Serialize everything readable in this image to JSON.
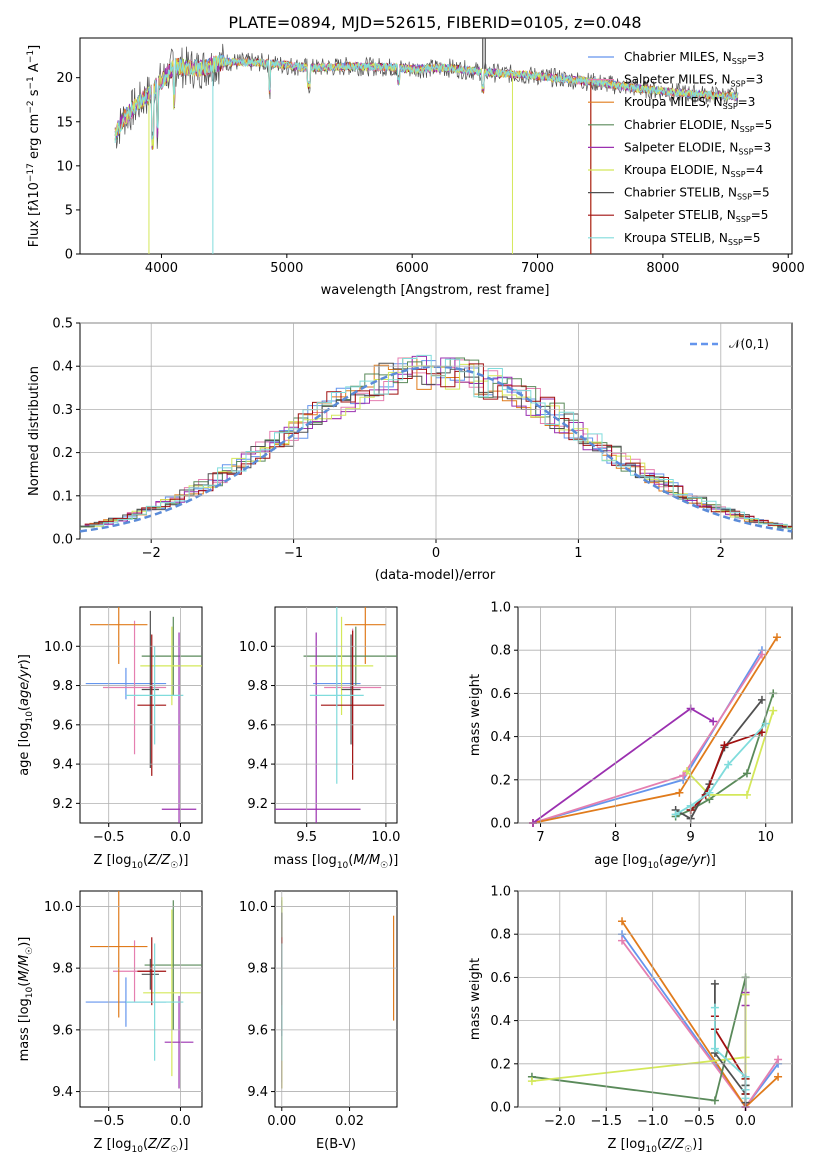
{
  "models": [
    {
      "name": "Chabrier MILES",
      "nssp": "3",
      "color": "#6495ed"
    },
    {
      "name": "Salpeter MILES",
      "nssp": "3",
      "color": "#e57fb0"
    },
    {
      "name": "Kroupa MILES",
      "nssp": "3",
      "color": "#e07b1c"
    },
    {
      "name": "Chabrier ELODIE",
      "nssp": "5",
      "color": "#5a8a5a"
    },
    {
      "name": "Salpeter ELODIE",
      "nssp": "3",
      "color": "#9b30b0"
    },
    {
      "name": "Kroupa ELODIE",
      "nssp": "4",
      "color": "#d4e85a"
    },
    {
      "name": "Chabrier STELIB",
      "nssp": "5",
      "color": "#505050"
    },
    {
      "name": "Salpeter STELIB",
      "nssp": "5",
      "color": "#a01010"
    },
    {
      "name": "Kroupa STELIB",
      "nssp": "5",
      "color": "#80dcdc"
    }
  ],
  "chart_data": [
    {
      "id": "spectrum",
      "type": "line",
      "title": "PLATE=0894, MJD=52615, FIBERID=0105, z=0.048",
      "xlabel": "wavelength [Angstrom, rest frame]",
      "ylabel": "Flux [f_λ 10^-17 erg cm^-2 s^-1 A^-1]",
      "xlim": [
        3350,
        9030
      ],
      "ylim": [
        0,
        24.5
      ],
      "xticks": [
        4000,
        5000,
        6000,
        7000,
        8000,
        9000
      ],
      "yticks": [
        0,
        5,
        10,
        15,
        20
      ],
      "x": [
        3630,
        3700,
        3800,
        3900,
        4000,
        4100,
        4300,
        4500,
        4800,
        5000,
        5200,
        5500,
        5800,
        6000,
        6300,
        6600,
        6900,
        7200,
        7500,
        7800,
        8100,
        8400,
        8600
      ],
      "y": [
        13.5,
        15.5,
        16.8,
        18.2,
        19.6,
        21.3,
        21.0,
        21.8,
        21.7,
        21.4,
        21.1,
        21.3,
        21.2,
        21.0,
        21.1,
        20.6,
        20.3,
        19.9,
        19.4,
        18.8,
        18.3,
        18.0,
        17.9
      ],
      "grid": false,
      "legend": "top-right"
    },
    {
      "id": "residuals",
      "type": "line",
      "xlabel": "(data-model)/error",
      "ylabel": "Normed distribution",
      "xlim": [
        -2.5,
        2.5
      ],
      "ylim": [
        0,
        0.5
      ],
      "xticks": [
        -2,
        -1,
        0,
        1,
        2
      ],
      "yticks": [
        0.0,
        0.1,
        0.2,
        0.3,
        0.4,
        0.5
      ],
      "reference_curve": "𝒩(0,1)",
      "grid": true,
      "legend": "top-right"
    },
    {
      "id": "age-vs-Z",
      "type": "scatter",
      "xlabel": "Z [log10(Z/Z☉)]",
      "ylabel": "age [log10(age/yr)]",
      "xlim": [
        -0.7,
        0.15
      ],
      "ylim": [
        9.1,
        10.2
      ],
      "xticks": [
        -0.5,
        0.0
      ],
      "yticks": [
        9.2,
        9.4,
        9.6,
        9.8,
        10.0
      ],
      "points": [
        {
          "x": -0.38,
          "y": 9.81,
          "xerr": 0.28,
          "yerr": 0.08
        },
        {
          "x": -0.32,
          "y": 9.79,
          "xerr": 0.22,
          "yerr": 0.34
        },
        {
          "x": -0.43,
          "y": 10.11,
          "xerr": 0.2,
          "yerr": 0.2
        },
        {
          "x": -0.05,
          "y": 9.95,
          "xerr": 0.22,
          "yerr": 0.2
        },
        {
          "x": -0.01,
          "y": 9.17,
          "xerr": 0.12,
          "yerr": 0.9
        },
        {
          "x": -0.06,
          "y": 9.9,
          "xerr": 0.22,
          "yerr": 0.2
        },
        {
          "x": -0.21,
          "y": 9.78,
          "xerr": 0.06,
          "yerr": 0.4
        },
        {
          "x": -0.2,
          "y": 9.7,
          "xerr": 0.1,
          "yerr": 0.36
        },
        {
          "x": -0.18,
          "y": 9.75,
          "xerr": 0.2,
          "yerr": 0.25
        }
      ],
      "grid": true
    },
    {
      "id": "age-vs-mass",
      "type": "scatter",
      "xlabel": "mass [log10(M/M☉)]",
      "ylabel": "",
      "xlim": [
        9.3,
        10.07
      ],
      "ylim": [
        9.1,
        10.2
      ],
      "xticks": [
        9.5,
        10.0
      ],
      "yticks": [
        9.2,
        9.4,
        9.6,
        9.8,
        10.0
      ],
      "points": [
        {
          "x": 9.69,
          "y": 9.81,
          "xerr": 0.15,
          "yerr": 0.12
        },
        {
          "x": 9.79,
          "y": 9.79,
          "xerr": 0.18,
          "yerr": 0.3
        },
        {
          "x": 9.87,
          "y": 10.11,
          "xerr": 0.13,
          "yerr": 0.2
        },
        {
          "x": 9.81,
          "y": 9.95,
          "xerr": 0.33,
          "yerr": 0.15
        },
        {
          "x": 9.56,
          "y": 9.17,
          "xerr": 0.28,
          "yerr": 0.9
        },
        {
          "x": 9.72,
          "y": 9.9,
          "xerr": 0.2,
          "yerr": 0.25
        },
        {
          "x": 9.78,
          "y": 9.78,
          "xerr": 0.06,
          "yerr": 0.28
        },
        {
          "x": 9.79,
          "y": 9.7,
          "xerr": 0.2,
          "yerr": 0.38
        },
        {
          "x": 9.69,
          "y": 9.75,
          "xerr": 0.17,
          "yerr": 0.45
        }
      ],
      "grid": true
    },
    {
      "id": "massweight-vs-age",
      "type": "line",
      "xlabel": "age [log10(age/yr)]",
      "ylabel": "mass weight",
      "xlim": [
        6.7,
        10.35
      ],
      "ylim": [
        0,
        1.0
      ],
      "xticks": [
        7,
        8,
        9,
        10
      ],
      "yticks": [
        0.0,
        0.2,
        0.4,
        0.6,
        0.8,
        1.0
      ],
      "series": [
        {
          "x": [
            6.9,
            8.9,
            9.95
          ],
          "y": [
            0.0,
            0.2,
            0.8
          ]
        },
        {
          "x": [
            6.9,
            8.9,
            9.95
          ],
          "y": [
            0.0,
            0.22,
            0.78
          ]
        },
        {
          "x": [
            6.9,
            8.85,
            10.15
          ],
          "y": [
            0.0,
            0.14,
            0.86
          ]
        },
        {
          "x": [
            8.8,
            9.0,
            9.25,
            9.75,
            10.1
          ],
          "y": [
            0.03,
            0.06,
            0.11,
            0.23,
            0.6
          ]
        },
        {
          "x": [
            6.9,
            9.0,
            9.3
          ],
          "y": [
            0.0,
            0.53,
            0.47
          ]
        },
        {
          "x": [
            8.95,
            9.25,
            9.75,
            10.1
          ],
          "y": [
            0.24,
            0.13,
            0.13,
            0.52
          ]
        },
        {
          "x": [
            8.8,
            9.0,
            9.25,
            9.45,
            9.95
          ],
          "y": [
            0.06,
            0.02,
            0.18,
            0.35,
            0.57
          ]
        },
        {
          "x": [
            9.0,
            9.2,
            9.45,
            9.95
          ],
          "y": [
            0.06,
            0.13,
            0.36,
            0.42
          ]
        },
        {
          "x": [
            8.8,
            9.0,
            9.25,
            9.5,
            10.0
          ],
          "y": [
            0.04,
            0.08,
            0.14,
            0.27,
            0.46
          ]
        }
      ],
      "grid": true
    },
    {
      "id": "mass-vs-Z",
      "type": "scatter",
      "xlabel": "Z [log10(Z/Z☉)]",
      "ylabel": "mass [log10(M/M☉)]",
      "xlim": [
        -0.7,
        0.15
      ],
      "ylim": [
        9.35,
        10.05
      ],
      "xticks": [
        -0.5,
        0.0
      ],
      "yticks": [
        9.4,
        9.6,
        9.8,
        10.0
      ],
      "points": [
        {
          "x": -0.38,
          "y": 9.69,
          "xerr": 0.28,
          "yerr": 0.08
        },
        {
          "x": -0.32,
          "y": 9.79,
          "xerr": 0.15,
          "yerr": 0.1
        },
        {
          "x": -0.43,
          "y": 9.87,
          "xerr": 0.2,
          "yerr": 0.23
        },
        {
          "x": -0.05,
          "y": 9.81,
          "xerr": 0.2,
          "yerr": 0.21
        },
        {
          "x": -0.01,
          "y": 9.56,
          "xerr": 0.1,
          "yerr": 0.15
        },
        {
          "x": -0.06,
          "y": 9.72,
          "xerr": 0.2,
          "yerr": 0.27
        },
        {
          "x": -0.21,
          "y": 9.78,
          "xerr": 0.06,
          "yerr": 0.05
        },
        {
          "x": -0.2,
          "y": 9.79,
          "xerr": 0.1,
          "yerr": 0.11
        },
        {
          "x": -0.18,
          "y": 9.69,
          "xerr": 0.2,
          "yerr": 0.19
        }
      ],
      "grid": true
    },
    {
      "id": "mass-vs-EBV",
      "type": "scatter",
      "xlabel": "E(B-V)",
      "ylabel": "",
      "xlim": [
        -0.002,
        0.034
      ],
      "ylim": [
        9.35,
        10.05
      ],
      "xticks": [
        0.0,
        0.02
      ],
      "yticks": [
        9.4,
        9.6,
        9.8,
        10.0
      ],
      "points": [
        {
          "x": 0.0,
          "y": 9.69,
          "xerr": 0,
          "yerr": 0.26
        },
        {
          "x": 0.0,
          "y": 9.79,
          "xerr": 0,
          "yerr": 0.14
        },
        {
          "x": 0.033,
          "y": 9.8,
          "xerr": 0,
          "yerr": 0.17
        },
        {
          "x": 0.0,
          "y": 9.81,
          "xerr": 0,
          "yerr": 0.21
        },
        {
          "x": 0.0,
          "y": 9.56,
          "xerr": 0,
          "yerr": 0.15
        },
        {
          "x": 0.0,
          "y": 9.72,
          "xerr": 0,
          "yerr": 0.31
        },
        {
          "x": 0.0,
          "y": 9.78,
          "xerr": 0,
          "yerr": 0.2
        },
        {
          "x": 0.0,
          "y": 9.79,
          "xerr": 0,
          "yerr": 0.11
        },
        {
          "x": 0.0,
          "y": 9.69,
          "xerr": 0,
          "yerr": 0.19
        }
      ],
      "grid": true
    },
    {
      "id": "massweight-vs-Z",
      "type": "line",
      "xlabel": "Z [log10(Z/Z☉)]",
      "ylabel": "mass weight",
      "xlim": [
        -2.45,
        0.5
      ],
      "ylim": [
        0,
        1.0
      ],
      "xticks": [
        -2.0,
        -1.5,
        -1.0,
        -0.5,
        0.0
      ],
      "yticks": [
        0.0,
        0.2,
        0.4,
        0.6,
        0.8,
        1.0
      ],
      "series": [
        {
          "x": [
            -1.33,
            0.0,
            0.35
          ],
          "y": [
            0.8,
            0.0,
            0.2
          ]
        },
        {
          "x": [
            -1.33,
            0.0,
            0.35
          ],
          "y": [
            0.77,
            0.0,
            0.22
          ]
        },
        {
          "x": [
            -1.33,
            0.0,
            0.35
          ],
          "y": [
            0.86,
            0.0,
            0.14
          ]
        },
        {
          "x": [
            -2.3,
            -0.33,
            0.0,
            0.0,
            0.0
          ],
          "y": [
            0.14,
            0.03,
            0.6,
            0.1,
            0.06
          ]
        },
        {
          "x": [
            0.0,
            0.0,
            0.0
          ],
          "y": [
            0.53,
            0.0,
            0.47
          ]
        },
        {
          "x": [
            -2.3,
            0.0,
            0.0,
            0.0
          ],
          "y": [
            0.12,
            0.23,
            0.52,
            0.13
          ]
        },
        {
          "x": [
            -0.33,
            -0.33,
            0.0,
            0.0,
            0.0
          ],
          "y": [
            0.57,
            0.25,
            0.06,
            0.02,
            0.1
          ]
        },
        {
          "x": [
            -0.33,
            -0.33,
            0.0,
            0.0
          ],
          "y": [
            0.42,
            0.36,
            0.13,
            0.06
          ]
        },
        {
          "x": [
            -0.33,
            -0.33,
            0.0,
            0.0,
            0.0
          ],
          "y": [
            0.46,
            0.27,
            0.14,
            0.08,
            0.04
          ]
        }
      ],
      "grid": true
    }
  ]
}
